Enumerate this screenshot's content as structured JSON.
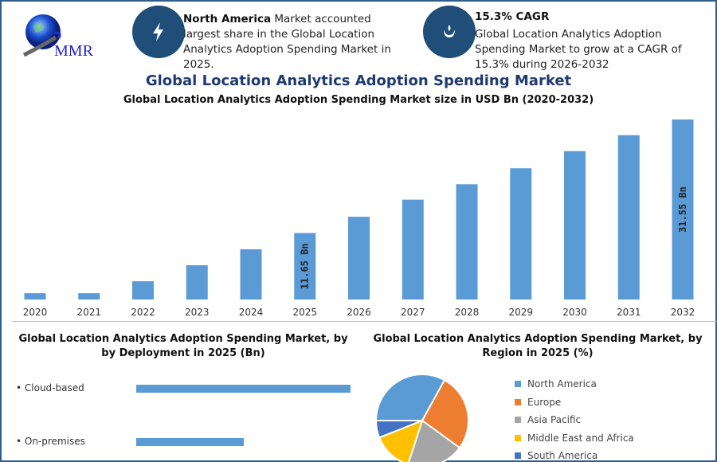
{
  "logo": {
    "text": "MMR"
  },
  "highlights": [
    {
      "icon": "lightning-icon",
      "bold": "North America",
      "text": " Market accounted largest share in the Global Location Analytics Adoption Spending Market in 2025."
    },
    {
      "icon": "growth-drop-icon",
      "bold": "15.3% CAGR",
      "text": "Global Location Analytics Adoption Spending Market to grow at a CAGR of 15.3% during 2026-2032"
    }
  ],
  "colors": {
    "bar": "#5b9bd5",
    "brand": "#1f4e79",
    "title": "#1f3a6e"
  },
  "chart_data": [
    {
      "type": "bar",
      "title": "Global Location Analytics Adoption Spending Market",
      "subtitle": "Global Location Analytics Adoption Spending Market size in USD Bn (2020-2032)",
      "categories": [
        "2020",
        "2021",
        "2022",
        "2023",
        "2024",
        "2025",
        "2026",
        "2027",
        "2028",
        "2029",
        "2030",
        "2031",
        "2032"
      ],
      "values": [
        1.1,
        1.1,
        3.2,
        6.0,
        8.8,
        11.65,
        14.5,
        17.5,
        20.2,
        23.0,
        26.0,
        28.8,
        31.55
      ],
      "data_labels": {
        "2025": "11.65 Bn",
        "2032": "31.55 Bn"
      },
      "grid": false
    },
    {
      "type": "bar",
      "orientation": "horizontal",
      "title": "Global Location Analytics Adoption Spending Market, by by Deployment in 2025 (Bn)",
      "categories": [
        "Cloud-based",
        "On-premises"
      ],
      "values": [
        1.0,
        0.5
      ]
    },
    {
      "type": "pie",
      "title": "Global Location Analytics Adoption Spending Market, by Region in 2025 (%)",
      "categories": [
        "North America",
        "Europe",
        "Asia Pacific",
        "Middle East and Africa",
        "South America"
      ],
      "values": [
        33,
        27,
        20,
        14,
        6
      ],
      "colors": [
        "#5b9bd5",
        "#ed7d31",
        "#a5a5a5",
        "#ffc000",
        "#4472c4"
      ],
      "legend": "right"
    }
  ]
}
